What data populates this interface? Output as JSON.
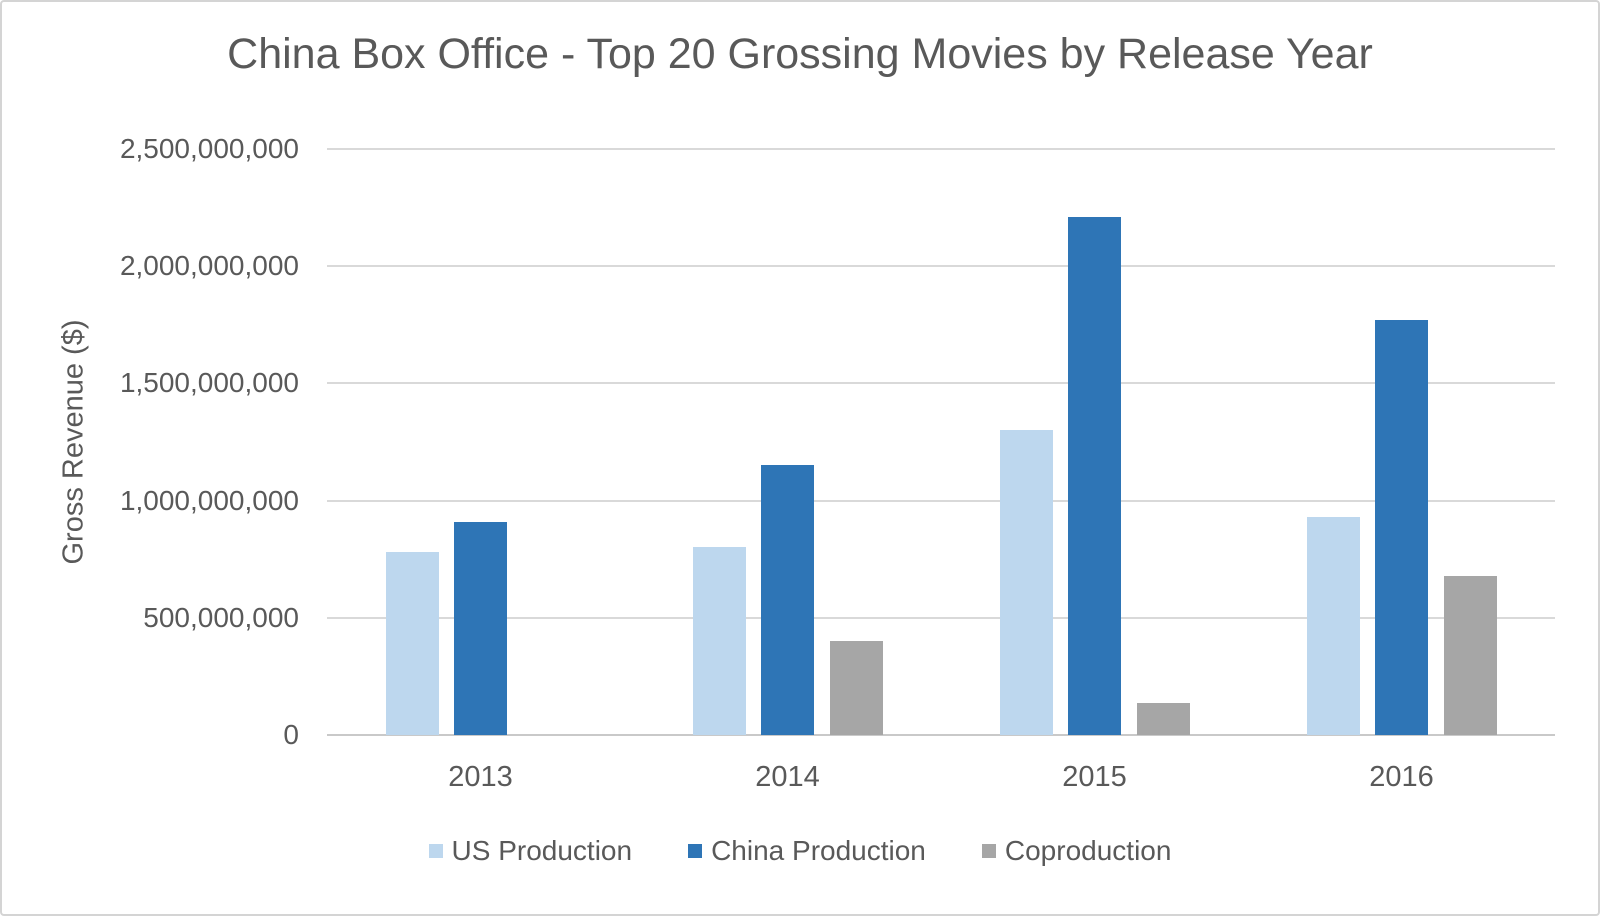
{
  "frame": {
    "background_color": "#ffffff",
    "border_color": "#d4d4d4"
  },
  "colors": {
    "text": "#595959",
    "gridline": "#d9d9d9",
    "axis_line": "#c9c9c9",
    "us_production": "#BDD7EE",
    "china_production": "#2E75B6",
    "coproduction": "#A6A6A6"
  },
  "chart_data": {
    "type": "bar",
    "title": "China Box Office - Top 20 Grossing Movies by Release Year",
    "xlabel": "",
    "ylabel": "Gross Revenue ($)",
    "categories": [
      "2013",
      "2014",
      "2015",
      "2016"
    ],
    "series": [
      {
        "name": "US Production",
        "color": "#BDD7EE",
        "values": [
          780000000,
          800000000,
          1300000000,
          930000000
        ]
      },
      {
        "name": "China Production",
        "color": "#2E75B6",
        "values": [
          910000000,
          1150000000,
          2210000000,
          1770000000
        ]
      },
      {
        "name": "Coproduction",
        "color": "#A6A6A6",
        "values": [
          0,
          400000000,
          135000000,
          680000000
        ]
      }
    ],
    "ylim": [
      0,
      2500000000
    ],
    "y_ticks": [
      0,
      500000000,
      1000000000,
      1500000000,
      2000000000,
      2500000000
    ],
    "y_tick_labels": [
      "0",
      "500,000,000",
      "1,000,000,000",
      "1,500,000,000",
      "2,000,000,000",
      "2,500,000,000"
    ],
    "grid": true,
    "legend_position": "bottom",
    "legend_labels": [
      "US Production",
      "China Production",
      "Coproduction"
    ]
  }
}
